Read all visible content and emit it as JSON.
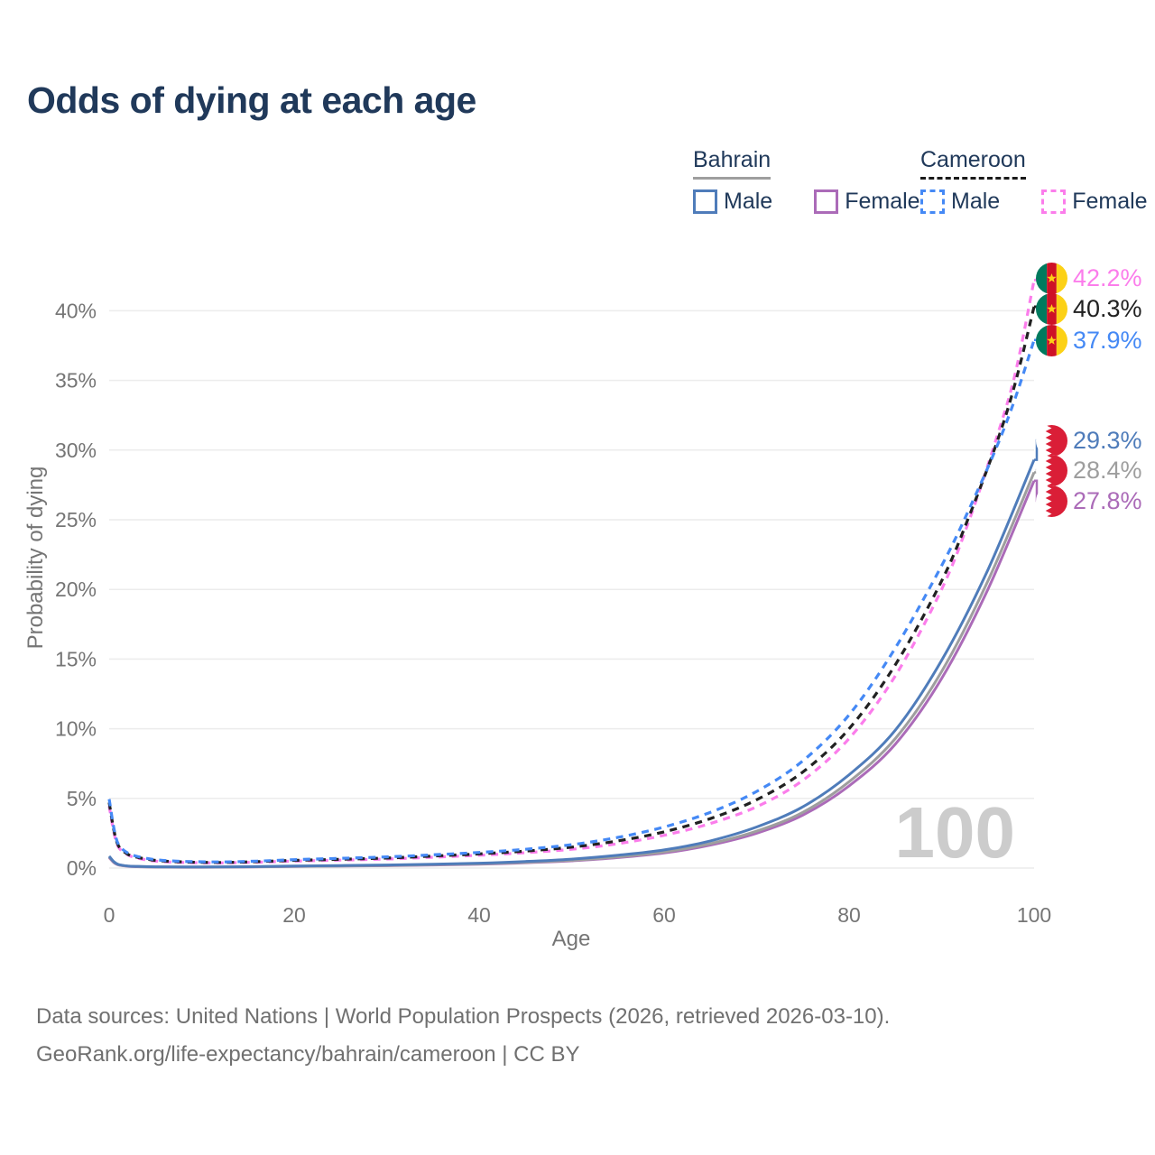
{
  "title": "Odds of dying at each age",
  "legend": {
    "groups": [
      {
        "name": "Bahrain",
        "line_style": "solid",
        "underline_color": "#9e9e9e",
        "items": [
          {
            "label": "Male",
            "color": "#4f7cba"
          },
          {
            "label": "Female",
            "color": "#ab6bb8"
          }
        ]
      },
      {
        "name": "Cameroon",
        "line_style": "dashed",
        "underline_color": "#1a1a1a",
        "items": [
          {
            "label": "Male",
            "color": "#4589f5"
          },
          {
            "label": "Female",
            "color": "#fb7deb"
          }
        ]
      }
    ]
  },
  "chart_data": {
    "type": "line",
    "xlabel": "Age",
    "ylabel": "Probability of dying",
    "xlim": [
      0,
      100
    ],
    "ylim_pct": [
      0,
      43.5
    ],
    "x_ticks": [
      0,
      20,
      40,
      60,
      80,
      100
    ],
    "y_ticks_pct": [
      0,
      5,
      10,
      15,
      20,
      25,
      30,
      35,
      40
    ],
    "y_tick_suffix": "%",
    "grid": "horizontal",
    "age_watermark": "100",
    "series": [
      {
        "name": "Cameroon Female",
        "style": "dashed",
        "color": "#fb7deb",
        "flag": "cameroon",
        "end_label": "42.2%",
        "end_value_pct": 42.2,
        "points": [
          [
            0,
            4.45
          ],
          [
            0.5,
            2.6
          ],
          [
            1,
            1.5
          ],
          [
            2,
            0.95
          ],
          [
            3,
            0.72
          ],
          [
            5,
            0.5
          ],
          [
            8,
            0.4
          ],
          [
            12,
            0.37
          ],
          [
            16,
            0.42
          ],
          [
            20,
            0.5
          ],
          [
            25,
            0.57
          ],
          [
            30,
            0.65
          ],
          [
            35,
            0.78
          ],
          [
            40,
            0.92
          ],
          [
            45,
            1.1
          ],
          [
            50,
            1.35
          ],
          [
            55,
            1.75
          ],
          [
            60,
            2.35
          ],
          [
            65,
            3.2
          ],
          [
            70,
            4.4
          ],
          [
            75,
            6.3
          ],
          [
            80,
            9.3
          ],
          [
            85,
            13.8
          ],
          [
            90,
            20.0
          ],
          [
            93,
            25.0
          ],
          [
            96,
            31.0
          ],
          [
            98,
            35.6
          ],
          [
            100,
            42.2
          ]
        ]
      },
      {
        "name": "Cameroon",
        "style": "dashed",
        "color": "#212121",
        "flag": "cameroon",
        "end_label": "40.3%",
        "end_value_pct": 40.3,
        "points": [
          [
            0,
            4.7
          ],
          [
            0.5,
            2.75
          ],
          [
            1,
            1.6
          ],
          [
            2,
            1.0
          ],
          [
            3,
            0.78
          ],
          [
            5,
            0.55
          ],
          [
            8,
            0.44
          ],
          [
            12,
            0.4
          ],
          [
            16,
            0.46
          ],
          [
            20,
            0.55
          ],
          [
            25,
            0.63
          ],
          [
            30,
            0.72
          ],
          [
            35,
            0.86
          ],
          [
            40,
            1.02
          ],
          [
            45,
            1.22
          ],
          [
            50,
            1.5
          ],
          [
            55,
            1.95
          ],
          [
            60,
            2.6
          ],
          [
            65,
            3.55
          ],
          [
            70,
            4.9
          ],
          [
            75,
            6.9
          ],
          [
            80,
            10.0
          ],
          [
            85,
            14.6
          ],
          [
            90,
            20.6
          ],
          [
            93,
            25.3
          ],
          [
            96,
            30.6
          ],
          [
            98,
            34.9
          ],
          [
            100,
            40.3
          ]
        ]
      },
      {
        "name": "Cameroon Male",
        "style": "dashed",
        "color": "#4589f5",
        "flag": "cameroon",
        "end_label": "37.9%",
        "end_value_pct": 37.9,
        "points": [
          [
            0,
            4.95
          ],
          [
            0.5,
            2.9
          ],
          [
            1,
            1.7
          ],
          [
            2,
            1.08
          ],
          [
            3,
            0.84
          ],
          [
            5,
            0.6
          ],
          [
            8,
            0.48
          ],
          [
            12,
            0.44
          ],
          [
            16,
            0.5
          ],
          [
            20,
            0.6
          ],
          [
            25,
            0.7
          ],
          [
            30,
            0.8
          ],
          [
            35,
            0.95
          ],
          [
            40,
            1.12
          ],
          [
            45,
            1.35
          ],
          [
            50,
            1.68
          ],
          [
            55,
            2.2
          ],
          [
            60,
            2.95
          ],
          [
            65,
            4.0
          ],
          [
            70,
            5.5
          ],
          [
            75,
            7.7
          ],
          [
            80,
            11.0
          ],
          [
            85,
            15.8
          ],
          [
            90,
            21.7
          ],
          [
            93,
            25.8
          ],
          [
            96,
            30.3
          ],
          [
            98,
            33.8
          ],
          [
            100,
            37.9
          ]
        ]
      },
      {
        "name": "Bahrain Female",
        "style": "solid",
        "color": "#ab6bb8",
        "flag": "bahrain",
        "end_label": "27.8%",
        "end_value_pct": 27.8,
        "points": [
          [
            0,
            0.75
          ],
          [
            0.5,
            0.4
          ],
          [
            1,
            0.22
          ],
          [
            2,
            0.13
          ],
          [
            3,
            0.1
          ],
          [
            5,
            0.07
          ],
          [
            10,
            0.06
          ],
          [
            15,
            0.08
          ],
          [
            20,
            0.11
          ],
          [
            25,
            0.14
          ],
          [
            30,
            0.17
          ],
          [
            35,
            0.22
          ],
          [
            40,
            0.28
          ],
          [
            45,
            0.38
          ],
          [
            50,
            0.52
          ],
          [
            55,
            0.75
          ],
          [
            60,
            1.08
          ],
          [
            65,
            1.65
          ],
          [
            70,
            2.5
          ],
          [
            75,
            3.8
          ],
          [
            80,
            5.9
          ],
          [
            85,
            8.9
          ],
          [
            90,
            13.6
          ],
          [
            95,
            20.0
          ],
          [
            100,
            27.8
          ]
        ]
      },
      {
        "name": "Bahrain",
        "style": "solid",
        "color": "#9e9e9e",
        "flag": "bahrain",
        "end_label": "28.4%",
        "end_value_pct": 28.4,
        "points": [
          [
            0,
            0.8
          ],
          [
            0.5,
            0.43
          ],
          [
            1,
            0.24
          ],
          [
            2,
            0.14
          ],
          [
            3,
            0.11
          ],
          [
            5,
            0.08
          ],
          [
            10,
            0.07
          ],
          [
            15,
            0.09
          ],
          [
            20,
            0.12
          ],
          [
            25,
            0.15
          ],
          [
            30,
            0.19
          ],
          [
            35,
            0.24
          ],
          [
            40,
            0.3
          ],
          [
            45,
            0.41
          ],
          [
            50,
            0.56
          ],
          [
            55,
            0.8
          ],
          [
            60,
            1.15
          ],
          [
            65,
            1.75
          ],
          [
            70,
            2.65
          ],
          [
            75,
            4.0
          ],
          [
            80,
            6.2
          ],
          [
            85,
            9.3
          ],
          [
            90,
            14.1
          ],
          [
            95,
            20.6
          ],
          [
            100,
            28.4
          ]
        ]
      },
      {
        "name": "Bahrain Male",
        "style": "solid",
        "color": "#4f7cba",
        "flag": "bahrain",
        "end_label": "29.3%",
        "end_value_pct": 29.3,
        "points": [
          [
            0,
            0.85
          ],
          [
            0.5,
            0.46
          ],
          [
            1,
            0.26
          ],
          [
            2,
            0.15
          ],
          [
            3,
            0.12
          ],
          [
            5,
            0.09
          ],
          [
            10,
            0.08
          ],
          [
            15,
            0.1
          ],
          [
            20,
            0.14
          ],
          [
            25,
            0.18
          ],
          [
            30,
            0.22
          ],
          [
            35,
            0.28
          ],
          [
            40,
            0.35
          ],
          [
            45,
            0.47
          ],
          [
            50,
            0.64
          ],
          [
            55,
            0.92
          ],
          [
            60,
            1.3
          ],
          [
            65,
            1.95
          ],
          [
            70,
            2.95
          ],
          [
            75,
            4.4
          ],
          [
            80,
            6.7
          ],
          [
            85,
            9.9
          ],
          [
            90,
            14.9
          ],
          [
            95,
            21.4
          ],
          [
            100,
            29.3
          ]
        ]
      }
    ]
  },
  "flag_colors": {
    "cameroon_green": "#007a5e",
    "cameroon_red": "#ce1126",
    "cameroon_yellow": "#fcd116",
    "bahrain_red": "#da1e37",
    "bahrain_white": "#ffffff"
  },
  "footer": {
    "line1": "Data sources: United Nations | World Population Prospects (2026, retrieved 2026-03-10).",
    "line2": "GeoRank.org/life-expectancy/bahrain/cameroon | CC BY"
  }
}
